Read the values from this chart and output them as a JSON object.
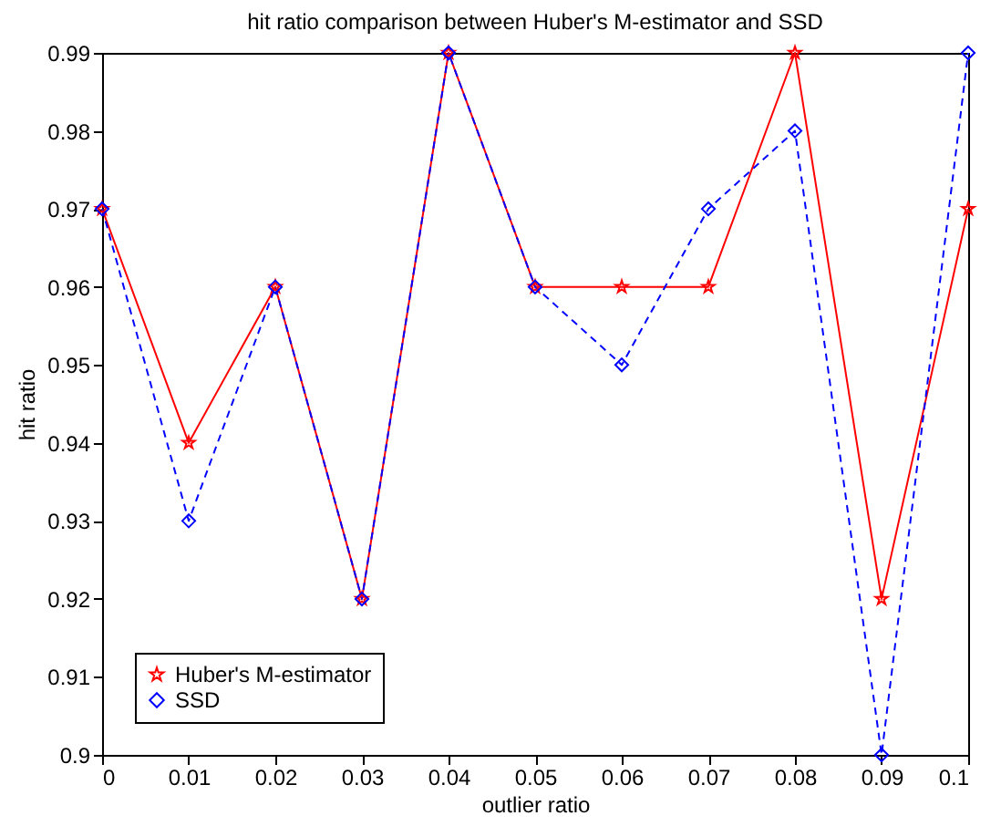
{
  "chart_data": {
    "type": "line",
    "title": "hit ratio comparison between Huber's M-estimator and SSD",
    "xlabel": "outlier ratio",
    "ylabel": "hit ratio",
    "x": [
      0,
      0.01,
      0.02,
      0.03,
      0.04,
      0.05,
      0.06,
      0.07,
      0.08,
      0.09,
      0.1
    ],
    "series": [
      {
        "name": "Huber's M-estimator",
        "color": "#ff0000",
        "marker": "star",
        "line_style": "solid",
        "values": [
          0.97,
          0.94,
          0.96,
          0.92,
          0.99,
          0.96,
          0.96,
          0.96,
          0.99,
          0.92,
          0.97
        ]
      },
      {
        "name": "SSD",
        "color": "#0000ff",
        "marker": "diamond",
        "line_style": "dashed",
        "values": [
          0.97,
          0.93,
          0.96,
          0.92,
          0.99,
          0.96,
          0.95,
          0.97,
          0.98,
          0.9,
          0.99
        ]
      }
    ],
    "xlim": [
      0,
      0.1
    ],
    "xticks": [
      0,
      0.01,
      0.02,
      0.03,
      0.04,
      0.05,
      0.06,
      0.07,
      0.08,
      0.09,
      0.1
    ],
    "ylim": [
      0.9,
      0.99
    ],
    "yticks": [
      0.9,
      0.91,
      0.92,
      0.93,
      0.94,
      0.95,
      0.96,
      0.97,
      0.98,
      0.99
    ],
    "grid": false,
    "legend": "bottom left"
  }
}
